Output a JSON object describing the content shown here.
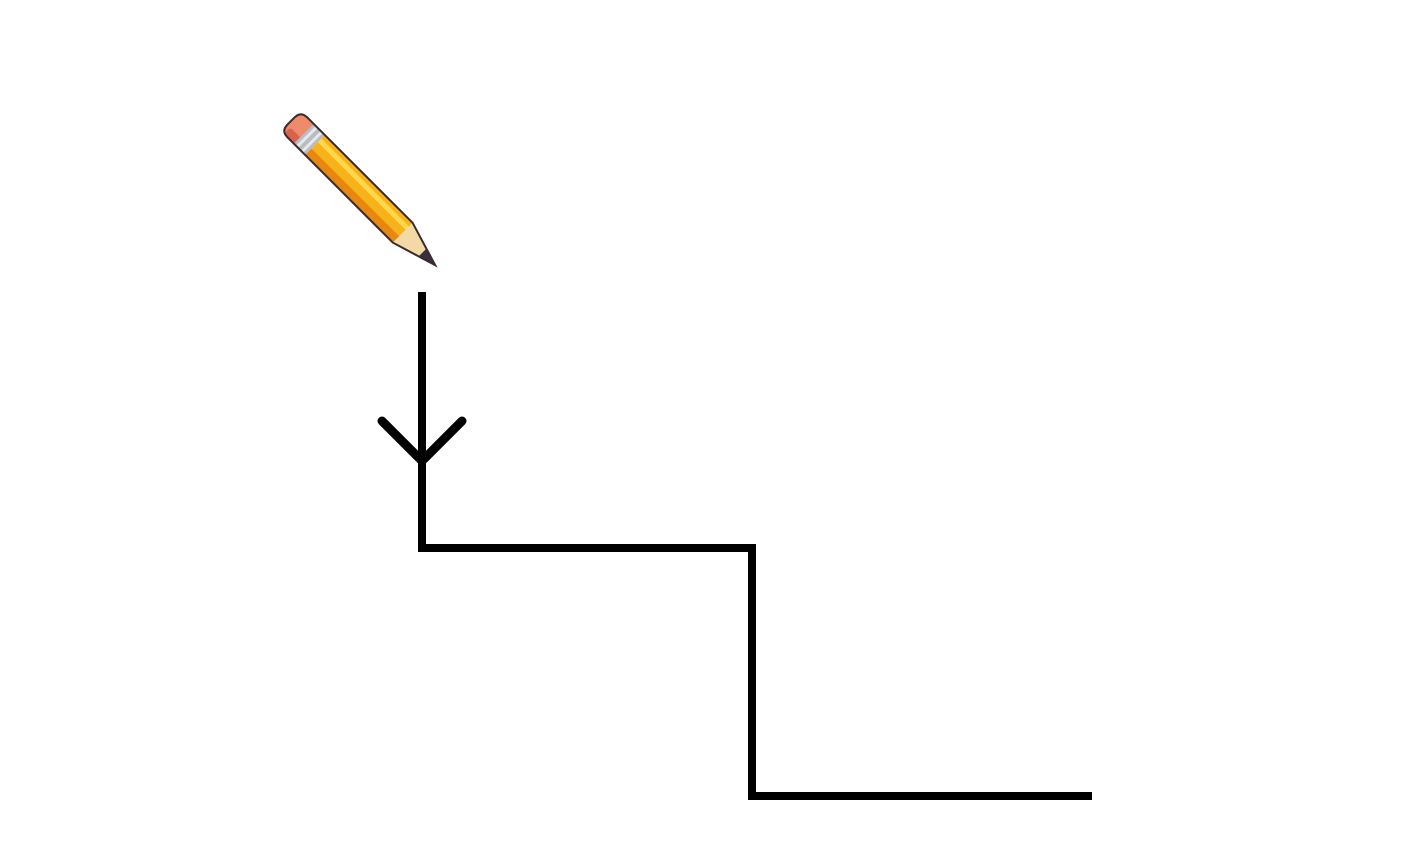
{
  "scene": {
    "background_color": "#ffffff",
    "line_color": "#000000",
    "pencil": {
      "icon": "pencil-icon",
      "colors": {
        "body": "#f7b21c",
        "body_shadow": "#e8870e",
        "body_highlight": "#ffd84a",
        "eraser": "#ef8a6a",
        "eraser_shadow": "#d8634a",
        "ferrule": "#b9bcc2",
        "ferrule_highlight": "#e6e8ec",
        "wood": "#f3d9a6",
        "lead": "#3a2f3f",
        "outline": "#3a2a2e"
      }
    },
    "path": {
      "arrow_direction": "down"
    }
  }
}
